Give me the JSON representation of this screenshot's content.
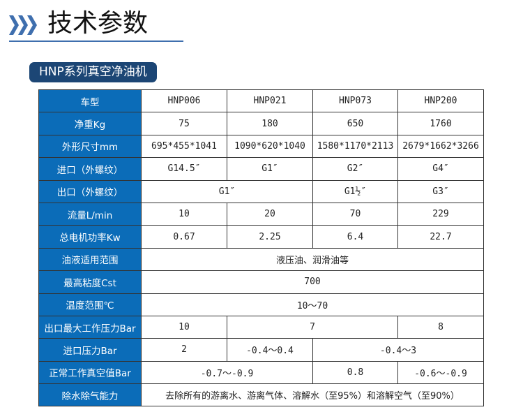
{
  "header": {
    "title": "技术参数",
    "icon": "triple-chevron-icon",
    "accent": "#3f6fae"
  },
  "section": {
    "label": "HNP系列真空净油机",
    "color": "#1c4675"
  },
  "table": {
    "header_color": "#0b6cb8",
    "rows": [
      {
        "label": "车型",
        "cells": [
          {
            "text": "HNP006",
            "span": 1
          },
          {
            "text": "HNP021",
            "span": 1
          },
          {
            "text": "HNP073",
            "span": 1
          },
          {
            "text": "HNP200",
            "span": 1
          }
        ]
      },
      {
        "label": "净重Kg",
        "cells": [
          {
            "text": "75",
            "span": 1
          },
          {
            "text": "180",
            "span": 1
          },
          {
            "text": "650",
            "span": 1
          },
          {
            "text": "1760",
            "span": 1
          }
        ]
      },
      {
        "label": "外形尺寸mm",
        "cells": [
          {
            "text": "695*455*1041",
            "span": 1
          },
          {
            "text": "1090*620*1040",
            "span": 1
          },
          {
            "text": "1580*1170*2113",
            "span": 1
          },
          {
            "text": "2679*1662*3266",
            "span": 1
          }
        ]
      },
      {
        "label": "进口（外螺纹）",
        "cells": [
          {
            "text": "G14.5″",
            "span": 1
          },
          {
            "text": "G1″",
            "span": 1
          },
          {
            "text": "G2″",
            "span": 1
          },
          {
            "text": "G4″",
            "span": 1
          }
        ]
      },
      {
        "label": "出口（外螺纹）",
        "cells": [
          {
            "text": "G1″",
            "span": 2
          },
          {
            "text": "G1½″",
            "span": 1
          },
          {
            "text": "G3″",
            "span": 1
          }
        ]
      },
      {
        "label": "流量L/min",
        "cells": [
          {
            "text": "10",
            "span": 1
          },
          {
            "text": "20",
            "span": 1
          },
          {
            "text": "70",
            "span": 1
          },
          {
            "text": "229",
            "span": 1
          }
        ]
      },
      {
        "label": "总电机功率Kw",
        "cells": [
          {
            "text": "0.67",
            "span": 1
          },
          {
            "text": "2.25",
            "span": 1
          },
          {
            "text": "6.4",
            "span": 1
          },
          {
            "text": "22.7",
            "span": 1
          }
        ]
      },
      {
        "label": "油液适用范围",
        "cells": [
          {
            "text": "液压油、润滑油等",
            "span": 4
          }
        ]
      },
      {
        "label": "最高粘度Cst",
        "cells": [
          {
            "text": "700",
            "span": 4
          }
        ]
      },
      {
        "label": "温度范围℃",
        "cells": [
          {
            "text": "10～70",
            "span": 4
          }
        ]
      },
      {
        "label": "出口最大工作压力Bar",
        "cells": [
          {
            "text": "10",
            "span": 1
          },
          {
            "text": "7",
            "span": 2
          },
          {
            "text": "8",
            "span": 1
          }
        ]
      },
      {
        "label": "进口压力Bar",
        "cells": [
          {
            "text": "2",
            "span": 1
          },
          {
            "text": "-0.4～0.4",
            "span": 1
          },
          {
            "text": "-0.4～3",
            "span": 2
          }
        ]
      },
      {
        "label": "正常工作真空值Bar",
        "cells": [
          {
            "text": "-0.7～-0.9",
            "span": 2
          },
          {
            "text": "0.8",
            "span": 1
          },
          {
            "text": "-0.6～-0.9",
            "span": 1
          }
        ]
      },
      {
        "label": "除水除气能力",
        "cells": [
          {
            "text": "去除所有的游离水、游离气体、溶解水（至95%）和溶解空气（至90%）",
            "span": 4
          }
        ]
      }
    ]
  }
}
